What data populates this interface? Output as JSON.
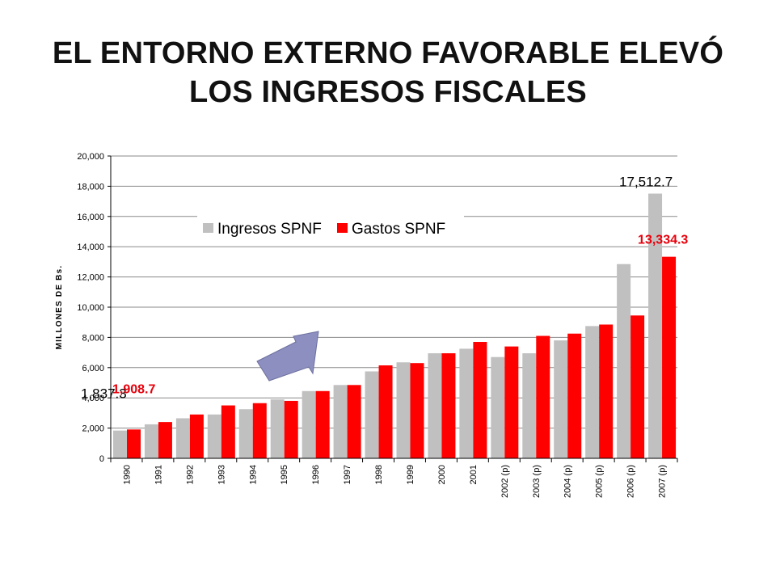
{
  "title": {
    "line1": "EL ENTORNO EXTERNO FAVORABLE ELEVÓ",
    "line2": "LOS INGRESOS FISCALES"
  },
  "colors": {
    "ingresos": "#c0c0c0",
    "gastos": "#ff0000",
    "arrow": "#8c8fbf",
    "highlight_ingresos": "#000000",
    "highlight_gastos": "#e8000b"
  },
  "chart_data": {
    "type": "bar",
    "ylabel": "MILLONES DE Bs.",
    "xlabel": "",
    "ylim": [
      0,
      20000
    ],
    "yticks": [
      0,
      2000,
      4000,
      6000,
      8000,
      10000,
      12000,
      14000,
      16000,
      18000,
      20000
    ],
    "ytick_labels": [
      "0",
      "2,000",
      "4,000",
      "6,000",
      "8,000",
      "10,000",
      "12,000",
      "14,000",
      "16,000",
      "18,000",
      "20,000"
    ],
    "grid": true,
    "legend": "top-left",
    "categories": [
      "1990",
      "1991",
      "1992",
      "1993",
      "1994",
      "1995",
      "1996",
      "1997",
      "1998",
      "1999",
      "2000",
      "2001",
      "2002 (p)",
      "2003 (p)",
      "2004 (p)",
      "2005 (p)",
      "2006 (p)",
      "2007 (p)"
    ],
    "series": [
      {
        "name": "Ingresos SPNF",
        "values": [
          1837.3,
          2250,
          2650,
          2900,
          3250,
          3900,
          4450,
          4850,
          5750,
          6350,
          6950,
          7250,
          6700,
          6950,
          7800,
          8750,
          12850,
          17512.7
        ]
      },
      {
        "name": "Gastos SPNF",
        "values": [
          1908.7,
          2400,
          2900,
          3500,
          3650,
          3800,
          4450,
          4850,
          6150,
          6300,
          6950,
          7700,
          7400,
          8100,
          8250,
          8850,
          9450,
          13334.3
        ]
      }
    ],
    "annotations": [
      {
        "text": "1,837.3",
        "series": 0,
        "index": 0
      },
      {
        "text": "1,908.7",
        "series": 1,
        "index": 0
      },
      {
        "text": "17,512.7",
        "series": 0,
        "index": 17
      },
      {
        "text": "13,334.3",
        "series": 1,
        "index": 17
      }
    ]
  }
}
